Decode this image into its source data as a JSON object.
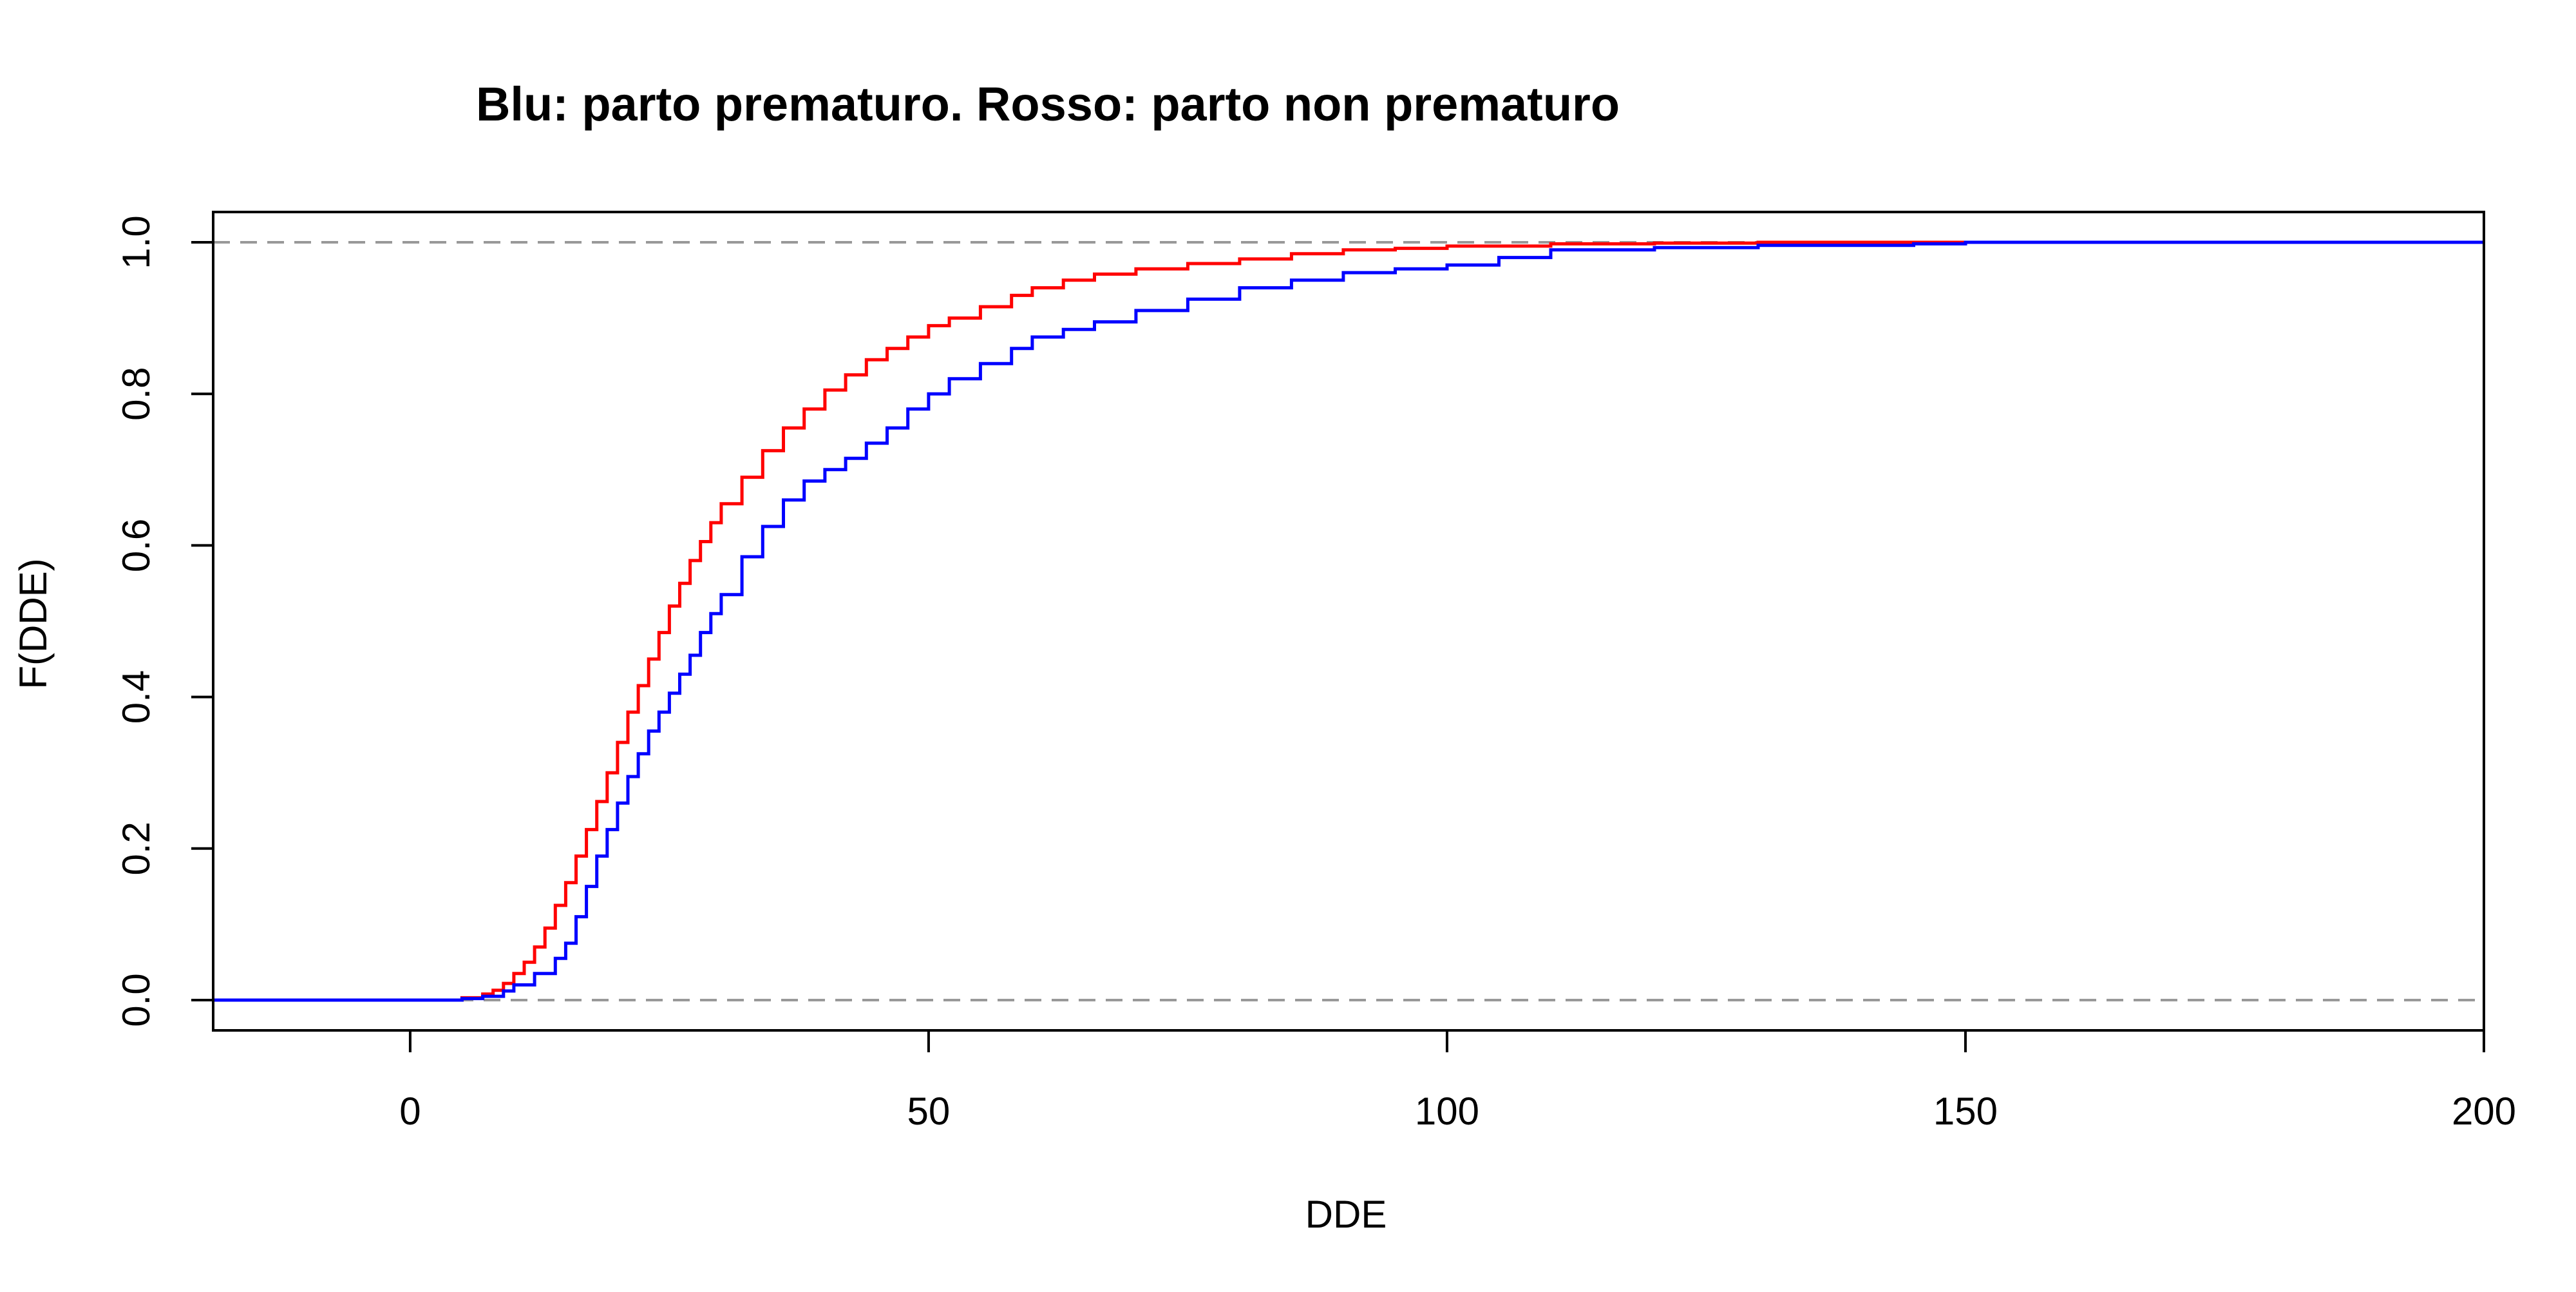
{
  "chart_data": {
    "type": "line",
    "title": "Blu: parto prematuro. Rosso: parto non prematuro",
    "xlabel": "DDE",
    "ylabel": "F(DDE)",
    "xlim": [
      -19,
      200
    ],
    "ylim": [
      -0.04,
      1.04
    ],
    "x_ticks": [
      0,
      50,
      100,
      150,
      200
    ],
    "x_tick_labels": [
      "0",
      "50",
      "100",
      "150",
      "200"
    ],
    "y_ticks": [
      0,
      0.2,
      0.4,
      0.6,
      0.8,
      1
    ],
    "y_tick_labels": [
      "0.0",
      "0.2",
      "0.4",
      "0.6",
      "0.8",
      "1.0"
    ],
    "reference_lines": [
      0,
      1
    ],
    "grid": false,
    "colors": {
      "premature": "#0000ff",
      "non_premature": "#ff0000",
      "reference_line": "#999999",
      "axis": "#000000"
    },
    "series": [
      {
        "color": "#ff0000",
        "x": [
          -19,
          3,
          5,
          7,
          8,
          9,
          10,
          11,
          12,
          13,
          14,
          15,
          16,
          17,
          18,
          19,
          20,
          21,
          22,
          23,
          24,
          25,
          26,
          27,
          28,
          29,
          30,
          32,
          34,
          36,
          38,
          40,
          42,
          44,
          46,
          48,
          50,
          52,
          55,
          58,
          60,
          63,
          66,
          70,
          75,
          80,
          85,
          90,
          95,
          100,
          110,
          120,
          130,
          150,
          180,
          200
        ],
        "y": [
          0,
          0,
          0.003,
          0.008,
          0.013,
          0.022,
          0.035,
          0.05,
          0.07,
          0.095,
          0.125,
          0.155,
          0.19,
          0.225,
          0.262,
          0.3,
          0.34,
          0.38,
          0.415,
          0.45,
          0.485,
          0.52,
          0.55,
          0.58,
          0.605,
          0.63,
          0.655,
          0.69,
          0.725,
          0.755,
          0.78,
          0.805,
          0.825,
          0.845,
          0.86,
          0.875,
          0.89,
          0.9,
          0.915,
          0.93,
          0.94,
          0.95,
          0.958,
          0.965,
          0.972,
          0.978,
          0.985,
          0.99,
          0.992,
          0.995,
          0.998,
          0.999,
          1,
          1,
          1,
          1
        ]
      },
      {
        "color": "#0000ff",
        "x": [
          -19,
          3,
          5,
          7,
          9,
          10,
          12,
          14,
          15,
          16,
          17,
          18,
          19,
          20,
          21,
          22,
          23,
          24,
          25,
          26,
          27,
          28,
          29,
          30,
          32,
          34,
          36,
          38,
          40,
          42,
          44,
          46,
          48,
          50,
          52,
          55,
          58,
          60,
          63,
          66,
          70,
          75,
          80,
          85,
          90,
          95,
          100,
          105,
          110,
          120,
          130,
          145,
          150,
          180,
          200
        ],
        "y": [
          0,
          0,
          0.002,
          0.005,
          0.012,
          0.02,
          0.035,
          0.055,
          0.075,
          0.11,
          0.15,
          0.19,
          0.225,
          0.26,
          0.295,
          0.325,
          0.355,
          0.38,
          0.405,
          0.43,
          0.455,
          0.485,
          0.51,
          0.535,
          0.585,
          0.625,
          0.66,
          0.685,
          0.7,
          0.715,
          0.735,
          0.755,
          0.78,
          0.8,
          0.82,
          0.84,
          0.86,
          0.875,
          0.885,
          0.895,
          0.91,
          0.925,
          0.94,
          0.95,
          0.96,
          0.965,
          0.97,
          0.98,
          0.99,
          0.993,
          0.996,
          0.998,
          1,
          1,
          1
        ]
      }
    ]
  }
}
